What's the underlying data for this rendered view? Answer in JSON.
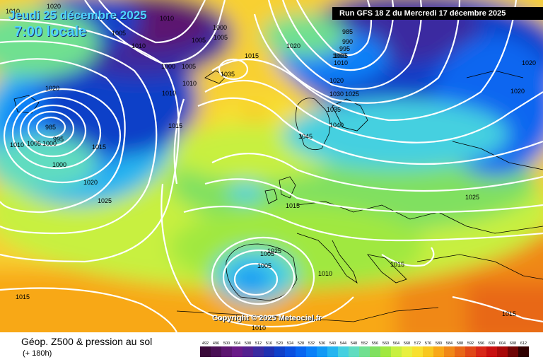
{
  "header": {
    "date_label": "Jeudi 25 décembre 2025",
    "time_label": "7:00 locale",
    "run_label": "Run GFS 18 Z du Mercredi 17 décembre 2025"
  },
  "copyright": "Copyright © 2025 Meteociel.fr",
  "footer": {
    "title": "Géop. Z500 & pression au sol",
    "subtitle": "(+ 180h)"
  },
  "scale": {
    "values": [
      "492",
      "496",
      "500",
      "504",
      "508",
      "512",
      "516",
      "520",
      "524",
      "528",
      "532",
      "536",
      "540",
      "544",
      "548",
      "552",
      "556",
      "560",
      "564",
      "568",
      "572",
      "576",
      "580",
      "584",
      "588",
      "592",
      "596",
      "600",
      "604",
      "608",
      "612"
    ],
    "colors": [
      "#3a0a3a",
      "#4a0f55",
      "#5c1570",
      "#6a1a88",
      "#54208f",
      "#3a2aa0",
      "#2030b0",
      "#1040c8",
      "#0a50e0",
      "#0866f0",
      "#0a80f8",
      "#1299f5",
      "#25b5f0",
      "#45d0e0",
      "#60dcc0",
      "#70e090",
      "#80e060",
      "#a0e840",
      "#c8f040",
      "#e8f040",
      "#f8e030",
      "#f8c820",
      "#f8a818",
      "#f08818",
      "#e86818",
      "#e04818",
      "#d82818",
      "#c81010",
      "#a80808",
      "#700404",
      "#300000"
    ]
  },
  "isobar_labels": [
    {
      "text": "1010"
    },
    {
      "text": "1020"
    },
    {
      "text": "1005"
    },
    {
      "text": "1010"
    },
    {
      "text": "1000"
    },
    {
      "text": "1010"
    },
    {
      "text": "1005"
    },
    {
      "text": "1005"
    },
    {
      "text": "1000"
    },
    {
      "text": "1005"
    },
    {
      "text": "1010"
    },
    {
      "text": "1015"
    },
    {
      "text": "1035"
    },
    {
      "text": "1010"
    },
    {
      "text": "1015"
    },
    {
      "text": "1020"
    },
    {
      "text": "985"
    },
    {
      "text": "990"
    },
    {
      "text": "995"
    },
    {
      "text": "1000"
    },
    {
      "text": "1005"
    },
    {
      "text": "1010"
    },
    {
      "text": "1020"
    },
    {
      "text": "1030"
    },
    {
      "text": "1025"
    },
    {
      "text": "1035"
    },
    {
      "text": "1040"
    },
    {
      "text": "1045"
    },
    {
      "text": "1025"
    },
    {
      "text": "1020"
    },
    {
      "text": "1020"
    },
    {
      "text": "1020"
    },
    {
      "text": "985"
    },
    {
      "text": "995"
    },
    {
      "text": "1010"
    },
    {
      "text": "1005"
    },
    {
      "text": "1000"
    },
    {
      "text": "1000"
    },
    {
      "text": "1015"
    },
    {
      "text": "1020"
    },
    {
      "text": "1025"
    },
    {
      "text": "1015"
    },
    {
      "text": "1005"
    },
    {
      "text": "1005"
    },
    {
      "text": "1010"
    },
    {
      "text": "1015"
    },
    {
      "text": "1025"
    },
    {
      "text": "1015"
    },
    {
      "text": "1015"
    },
    {
      "text": "1010"
    }
  ]
}
